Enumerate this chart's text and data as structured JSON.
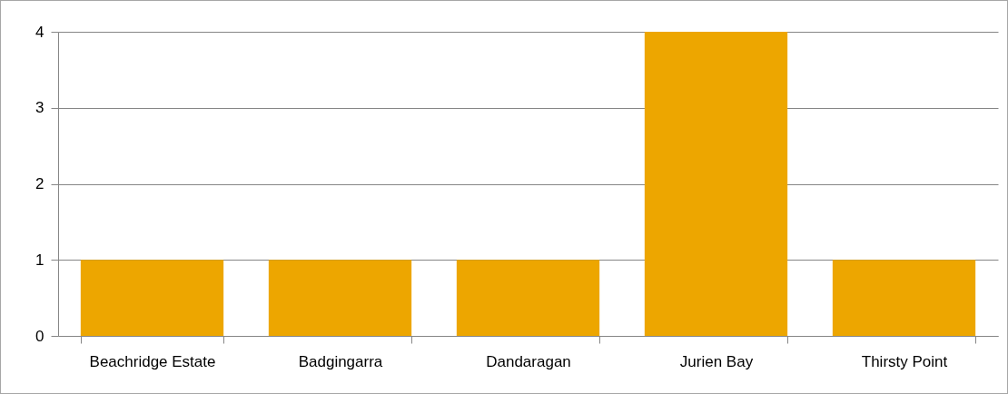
{
  "chart_data": {
    "type": "bar",
    "categories": [
      "Beachridge Estate",
      "Badgingarra",
      "Dandaragan",
      "Jurien Bay",
      "Thirsty Point"
    ],
    "values": [
      1,
      1,
      1,
      4,
      1
    ],
    "color": "#eda600",
    "ylim": [
      0,
      4
    ],
    "yticks": [
      0,
      1,
      2,
      3,
      4
    ],
    "grid": "y"
  }
}
